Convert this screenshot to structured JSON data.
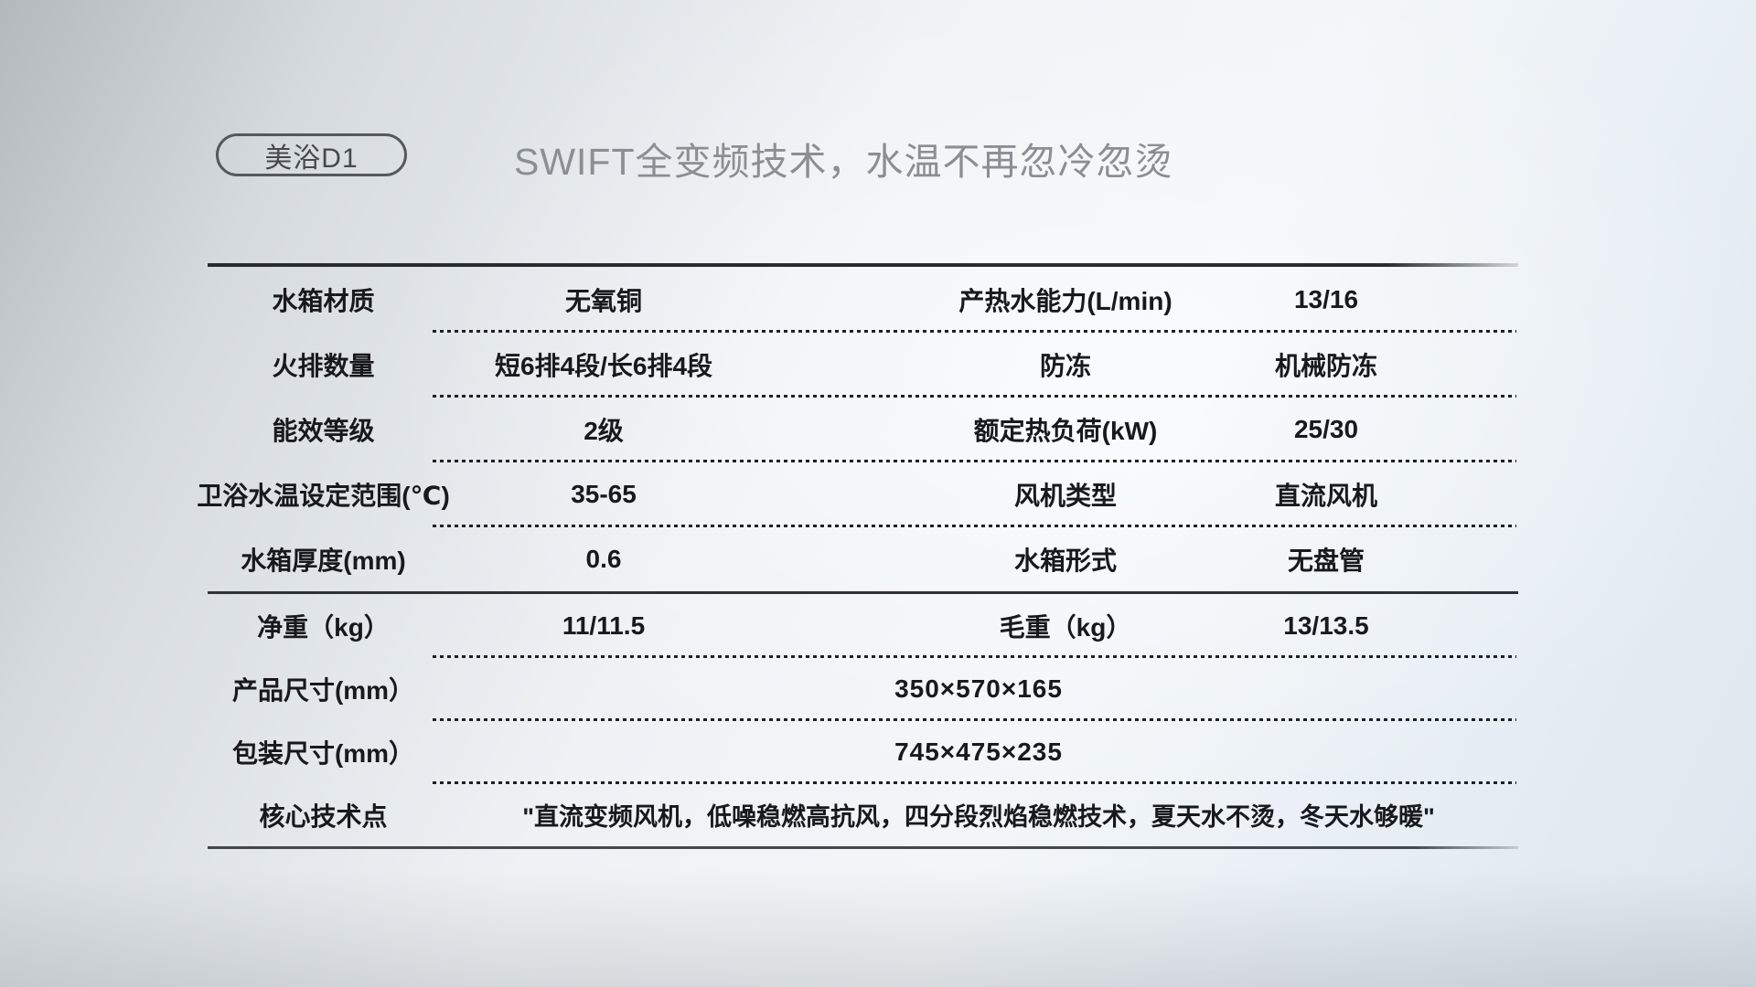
{
  "badge": {
    "label": "美浴D1"
  },
  "title": "SWIFT全变频技术，水温不再忽冷忽烫",
  "table": {
    "rows": [
      {
        "c0": "水箱材质",
        "c1": "无氧铜",
        "c2": "产热水能力(L/min)",
        "c3": "13/16"
      },
      {
        "c0": "火排数量",
        "c1": "短6排4段/长6排4段",
        "c2": "防冻",
        "c3": "机械防冻"
      },
      {
        "c0": "能效等级",
        "c1": "2级",
        "c2": "额定热负荷(kW)",
        "c3": "25/30"
      },
      {
        "c0": "卫浴水温设定范围(℃)",
        "c1": "35-65",
        "c2": "风机类型",
        "c3": "直流风机"
      },
      {
        "c0": "水箱厚度(mm)",
        "c1": "0.6",
        "c2": "水箱形式",
        "c3": "无盘管"
      },
      {
        "c0": "净重（kg）",
        "c1": "11/11.5",
        "c2": "毛重（kg）",
        "c3": "13/13.5"
      },
      {
        "c0": "产品尺寸(mm）",
        "c1": "350×570×165"
      },
      {
        "c0": "包装尺寸(mm）",
        "c1": "745×475×235"
      },
      {
        "c0": "核心技术点",
        "c1": "\"直流变频风机，低噪稳燃高抗风，四分段烈焰稳燃技术，夏天水不烫，冬天水够暖\""
      }
    ]
  },
  "colors": {
    "background_left": "#b4b9bd",
    "background_right": "#dde6ee",
    "table_top_border": "#292c2e",
    "table_mid_border": "#2f3235",
    "table_bottom_border": "#44474b",
    "dotted_separator": "#1e2124",
    "cell_text": "#17191c",
    "title_text": "#8b8f93",
    "badge_border": "#55585c",
    "badge_text": "#45494e"
  }
}
